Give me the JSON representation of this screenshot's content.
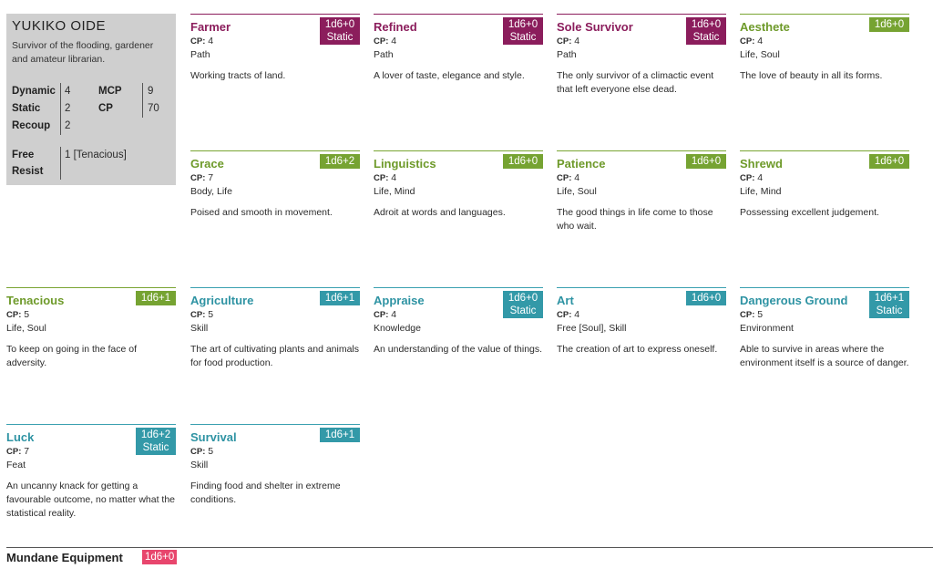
{
  "character": {
    "name": "YUKIKO OIDE",
    "description": "Survivor of the flooding, gardener and amateur librarian.",
    "stats": {
      "dynamic_label": "Dynamic",
      "dynamic": "4",
      "static_label": "Static",
      "static": "2",
      "recoup_label": "Recoup",
      "recoup": "2",
      "mcp_label": "MCP",
      "mcp": "9",
      "cp_label": "CP",
      "cp": "70",
      "free_resist_label_1": "Free",
      "free_resist_label_2": "Resist",
      "free_resist": "1 [Tenacious]"
    }
  },
  "cp_label": "CP:",
  "traits": [
    {
      "name": "Farmer",
      "dice": "1d6+0",
      "dice2": "Static",
      "cp": "4",
      "type": "Path",
      "desc": "Working tracts of land."
    },
    {
      "name": "Refined",
      "dice": "1d6+0",
      "dice2": "Static",
      "cp": "4",
      "type": "Path",
      "desc": "A lover of taste, elegance and style."
    },
    {
      "name": "Sole Survivor",
      "dice": "1d6+0",
      "dice2": "Static",
      "cp": "4",
      "type": "Path",
      "desc": "The only survivor of a climactic event that left everyone else dead."
    },
    {
      "name": "Aesthete",
      "dice": "1d6+0",
      "cp": "4",
      "type": "Life, Soul",
      "desc": "The love of beauty in all its forms."
    },
    {
      "name": "Grace",
      "dice": "1d6+2",
      "cp": "7",
      "type": "Body, Life",
      "desc": "Poised and smooth in movement."
    },
    {
      "name": "Linguistics",
      "dice": "1d6+0",
      "cp": "4",
      "type": "Life, Mind",
      "desc": "Adroit at words and languages."
    },
    {
      "name": "Patience",
      "dice": "1d6+0",
      "cp": "4",
      "type": "Life, Soul",
      "desc": "The good things in life come to those who wait."
    },
    {
      "name": "Shrewd",
      "dice": "1d6+0",
      "cp": "4",
      "type": "Life, Mind",
      "desc": "Possessing excellent judgement."
    },
    {
      "name": "Tenacious",
      "dice": "1d6+1",
      "cp": "5",
      "type": "Life, Soul",
      "desc": "To keep on going in the face of adversity."
    },
    {
      "name": "Agriculture",
      "dice": "1d6+1",
      "cp": "5",
      "type": "Skill",
      "desc": "The art of cultivating plants and animals for food production."
    },
    {
      "name": "Appraise",
      "dice": "1d6+0",
      "dice2": "Static",
      "cp": "4",
      "type": "Knowledge",
      "desc": "An understanding of the value of things."
    },
    {
      "name": "Art",
      "dice": "1d6+0",
      "cp": "4",
      "type": "Free [Soul], Skill",
      "desc": "The creation of art to express oneself."
    },
    {
      "name": "Dangerous Ground",
      "dice": "1d6+1",
      "dice2": "Static",
      "cp": "5",
      "type": "Environment",
      "desc": "Able to survive in areas where the environment itself is a source of danger."
    },
    {
      "name": "Luck",
      "dice": "1d6+2",
      "dice2": "Static",
      "cp": "7",
      "type": "Feat",
      "desc": "An uncanny knack for getting a favourable outcome, no matter what the statistical reality."
    },
    {
      "name": "Survival",
      "dice": "1d6+1",
      "cp": "5",
      "type": "Skill",
      "desc": "Finding food and shelter in extreme conditions."
    }
  ],
  "equipment": {
    "title": "Mundane Equipment",
    "dice": "1d6+0"
  },
  "colors": {
    "path": "#8b1d5c",
    "life": "#76a332",
    "skill": "#3399a8",
    "equipment": "#e8466d",
    "card": "#cfcfcf"
  }
}
